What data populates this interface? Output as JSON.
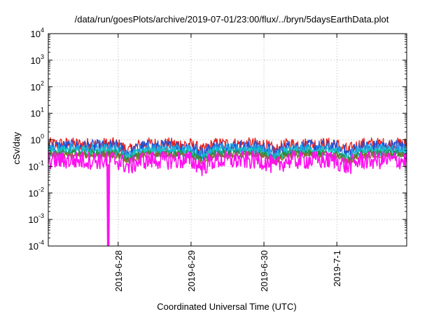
{
  "chart_data": {
    "type": "line",
    "title": "/data/run/goesPlots/archive/2019-07-01/23:00/flux/../bryn/5daysEarthData.plot",
    "xlabel": "Coordinated Universal Time (UTC)",
    "ylabel": "cSv/day",
    "yscale": "log",
    "ylim": [
      0.0001,
      10000
    ],
    "y_ticks": [
      {
        "value": 0.0001,
        "base": "10",
        "exp": "-4"
      },
      {
        "value": 0.001,
        "base": "10",
        "exp": "-3"
      },
      {
        "value": 0.01,
        "base": "10",
        "exp": "-2"
      },
      {
        "value": 0.1,
        "base": "10",
        "exp": "-1"
      },
      {
        "value": 1,
        "base": "10",
        "exp": "0"
      },
      {
        "value": 10,
        "base": "10",
        "exp": "1"
      },
      {
        "value": 100,
        "base": "10",
        "exp": "2"
      },
      {
        "value": 1000,
        "base": "10",
        "exp": "3"
      },
      {
        "value": 10000,
        "base": "10",
        "exp": "4"
      }
    ],
    "xlim": [
      "2019-06-27T01:00",
      "2019-07-01T23:00"
    ],
    "x_ticks": [
      {
        "value": "2019-06-28T00:00",
        "label": "2019-6-28"
      },
      {
        "value": "2019-06-29T00:00",
        "label": "2019-6-29"
      },
      {
        "value": "2019-06-30T00:00",
        "label": "2019-6-30"
      },
      {
        "value": "2019-07-01T00:00",
        "label": "2019-7-1"
      }
    ],
    "grid": true,
    "series": [
      {
        "color": "#e8211d",
        "level": 0.68,
        "spread": 0.55
      },
      {
        "color": "#1f4fd6",
        "level": 0.55,
        "spread": 0.55
      },
      {
        "color": "#1aa3e6",
        "level": 0.44,
        "spread": 0.45
      },
      {
        "color": "#18c8c0",
        "level": 0.36,
        "spread": 0.4
      },
      {
        "color": "#2a8a3a",
        "level": 0.3,
        "spread": 0.3
      },
      {
        "color": "#8a6a2a",
        "level": 0.26,
        "spread": 0.25
      },
      {
        "color": "#ff10f0",
        "level": 0.17,
        "spread": 0.75
      }
    ],
    "events": [
      {
        "type": "dropout",
        "series_color": "#ff10f0",
        "from": "2019-06-27T20:30",
        "to": "2019-06-27T21:00",
        "min": 0.0001
      }
    ]
  }
}
